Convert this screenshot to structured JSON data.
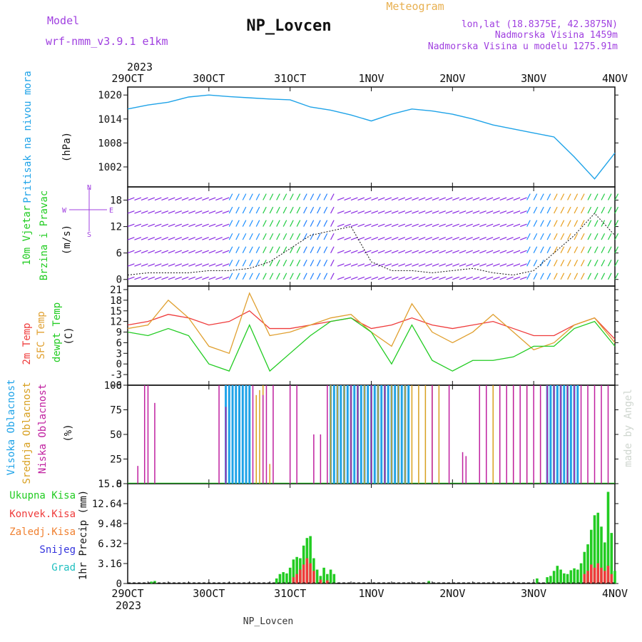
{
  "header": {
    "model_label": "Model",
    "model_name": "wrf-nmm_v3.9.1 e1km",
    "station": "NP_Lovcen",
    "meteogram_label": "Meteogram",
    "lonlat": "lon,lat (18.8375E, 42.3875N)",
    "elevation": "Nadmorska Visina 1459m",
    "model_elevation": "Nadmorska Visina u modelu 1275.91m",
    "year": "2023",
    "footer_station": "NP_Lovcen",
    "watermark": "made by Angel"
  },
  "colors": {
    "pressure": "#1fa3e8",
    "temp2m": "#ef3b3b",
    "sfc": "#e0a030",
    "dewpt": "#22cc22",
    "wind_speed": "#111111",
    "high_cloud": "#1fa3e8",
    "mid_cloud": "#d8a020",
    "low_cloud": "#c020a0",
    "total_precip": "#22cc22",
    "conv_precip": "#ef3b3b",
    "frz_precip": "#f08030",
    "snow": "#3333dd",
    "graupel": "#20c0c0",
    "header_purple": "#a040e0",
    "header_gold": "#e8b050"
  },
  "chart_data": [
    {
      "type": "line",
      "panel": "pressure",
      "ylabel_lines": [
        "Pritisak na nivou mora",
        "(hPa)"
      ],
      "x_ticks": [
        "29OCT",
        "30OCT",
        "31OCT",
        "1NOV",
        "2NOV",
        "3NOV",
        "4NOV"
      ],
      "ylim": [
        997,
        1022
      ],
      "yticks": [
        1002,
        1008,
        1014,
        1020
      ],
      "x_hours": [
        0,
        6,
        12,
        18,
        24,
        30,
        36,
        42,
        48,
        54,
        60,
        66,
        72,
        78,
        84,
        90,
        96,
        102,
        108,
        114,
        120,
        126,
        132,
        138,
        144
      ],
      "series": [
        {
          "values": [
            1016.5,
            1017.5,
            1018.2,
            1019.5,
            1020.0,
            1019.6,
            1019.3,
            1019.0,
            1018.8,
            1017.0,
            1016.2,
            1015.0,
            1013.5,
            1015.2,
            1016.5,
            1016.0,
            1015.2,
            1014.0,
            1012.5,
            1011.5,
            1010.5,
            1009.5,
            1004.5,
            999.0,
            1005.5
          ]
        }
      ]
    },
    {
      "type": "line",
      "panel": "wind",
      "ylabel_lines": [
        "10m Vjetar",
        "Brzina i Pravac",
        "(m/s)"
      ],
      "ylim": [
        -1.5,
        21
      ],
      "yticks": [
        0,
        6,
        12,
        18
      ],
      "x_hours": [
        0,
        6,
        12,
        18,
        24,
        30,
        36,
        42,
        48,
        54,
        60,
        66,
        72,
        78,
        84,
        90,
        96,
        102,
        108,
        114,
        120,
        126,
        132,
        138,
        144
      ],
      "series": [
        {
          "values": [
            1,
            1.5,
            1.5,
            1.5,
            2,
            2,
            2.5,
            4,
            7,
            10,
            11,
            12,
            4,
            2,
            2,
            1.5,
            2,
            2.5,
            1.5,
            1,
            2,
            6,
            10,
            15,
            10
          ]
        }
      ],
      "compass": [
        "N",
        "E",
        "W",
        "S"
      ]
    },
    {
      "type": "line",
      "panel": "temperature",
      "ylabel_lines": [
        "2m Temp",
        "SFC Temp",
        "dewpt Temp",
        "(C)"
      ],
      "ylim": [
        -6,
        22
      ],
      "yticks": [
        -6,
        -3,
        0,
        3,
        6,
        9,
        12,
        15,
        18,
        21
      ],
      "x_hours": [
        0,
        6,
        12,
        18,
        24,
        30,
        36,
        42,
        48,
        54,
        60,
        66,
        72,
        78,
        84,
        90,
        96,
        102,
        108,
        114,
        120,
        126,
        132,
        138,
        144
      ],
      "series": [
        {
          "name": "2m Temp",
          "values": [
            11,
            12,
            14,
            13,
            11,
            12,
            15,
            10,
            10,
            11,
            12,
            13,
            10,
            11,
            13,
            11,
            10,
            11,
            12,
            10,
            8,
            8,
            11,
            13,
            7
          ]
        },
        {
          "name": "SFC Temp",
          "values": [
            10,
            11,
            18,
            13,
            5,
            3,
            20,
            8,
            9,
            11,
            13,
            14,
            9,
            5,
            17,
            9,
            6,
            9,
            14,
            9,
            4,
            6,
            11,
            13,
            6
          ]
        },
        {
          "name": "dewpt Temp",
          "values": [
            9,
            8,
            10,
            8,
            0,
            -2,
            11,
            -2,
            3,
            8,
            12,
            13,
            9,
            0,
            11,
            1,
            -2,
            1,
            1,
            2,
            5,
            5,
            10,
            12,
            5
          ]
        }
      ]
    },
    {
      "type": "bar",
      "panel": "cloud",
      "ylabel_lines": [
        "Visoka Oblacnost",
        "Srednja Oblacnost",
        "Niska Oblacnost",
        "(%)"
      ],
      "ylim": [
        0,
        100
      ],
      "yticks": [
        0,
        25,
        50,
        75,
        100
      ],
      "series": [
        {
          "name": "Visoka Oblacnost",
          "bars": [
            [
              29,
              100
            ],
            [
              30,
              100
            ],
            [
              31,
              100
            ],
            [
              32,
              100
            ],
            [
              33,
              100
            ],
            [
              34,
              100
            ],
            [
              35,
              100
            ],
            [
              36,
              100
            ],
            [
              60,
              100
            ],
            [
              61,
              100
            ],
            [
              62,
              100
            ],
            [
              63,
              100
            ],
            [
              64,
              100
            ],
            [
              65,
              100
            ],
            [
              66,
              100
            ],
            [
              67,
              100
            ],
            [
              68,
              100
            ],
            [
              69,
              100
            ],
            [
              70,
              100
            ],
            [
              71,
              100
            ],
            [
              72,
              100
            ],
            [
              73,
              100
            ],
            [
              74,
              100
            ],
            [
              75,
              100
            ],
            [
              76,
              100
            ],
            [
              77,
              100
            ],
            [
              78,
              100
            ],
            [
              79,
              100
            ],
            [
              80,
              100
            ],
            [
              81,
              100
            ],
            [
              82,
              100
            ],
            [
              83,
              100
            ],
            [
              124,
              100
            ],
            [
              125,
              100
            ],
            [
              126,
              100
            ],
            [
              127,
              100
            ],
            [
              128,
              100
            ],
            [
              129,
              100
            ],
            [
              130,
              100
            ],
            [
              131,
              100
            ],
            [
              132,
              100
            ],
            [
              133,
              100
            ]
          ]
        },
        {
          "name": "Srednja Oblacnost",
          "bars": [
            [
              38,
              90
            ],
            [
              39,
              95
            ],
            [
              40,
              100
            ],
            [
              42,
              20
            ],
            [
              60,
              100
            ],
            [
              62,
              100
            ],
            [
              64,
              100
            ],
            [
              66,
              100
            ],
            [
              68,
              100
            ],
            [
              70,
              100
            ],
            [
              72,
              100
            ],
            [
              74,
              100
            ],
            [
              76,
              100
            ],
            [
              78,
              100
            ],
            [
              80,
              100
            ],
            [
              82,
              100
            ],
            [
              84,
              100
            ],
            [
              86,
              100
            ],
            [
              88,
              100
            ],
            [
              90,
              100
            ],
            [
              92,
              100
            ],
            [
              108,
              100
            ],
            [
              110,
              100
            ],
            [
              114,
              100
            ],
            [
              118,
              100
            ],
            [
              122,
              85
            ],
            [
              126,
              100
            ],
            [
              130,
              100
            ]
          ]
        },
        {
          "name": "Niska Oblacnost",
          "bars": [
            [
              3,
              18
            ],
            [
              5,
              100
            ],
            [
              6,
              100
            ],
            [
              8,
              82
            ],
            [
              27,
              100
            ],
            [
              29,
              78
            ],
            [
              37,
              100
            ],
            [
              40,
              90
            ],
            [
              41,
              100
            ],
            [
              43,
              100
            ],
            [
              48,
              100
            ],
            [
              50,
              100
            ],
            [
              55,
              50
            ],
            [
              57,
              50
            ],
            [
              59,
              100
            ],
            [
              66,
              100
            ],
            [
              68,
              100
            ],
            [
              72,
              100
            ],
            [
              76,
              100
            ],
            [
              90,
              100
            ],
            [
              95,
              100
            ],
            [
              99,
              32
            ],
            [
              100,
              28
            ],
            [
              104,
              100
            ],
            [
              106,
              100
            ],
            [
              110,
              100
            ],
            [
              112,
              100
            ],
            [
              114,
              100
            ],
            [
              116,
              100
            ],
            [
              118,
              100
            ],
            [
              120,
              100
            ],
            [
              122,
              100
            ],
            [
              124,
              100
            ],
            [
              126,
              100
            ],
            [
              128,
              100
            ],
            [
              130,
              100
            ],
            [
              132,
              100
            ],
            [
              134,
              100
            ],
            [
              136,
              100
            ],
            [
              138,
              100
            ],
            [
              140,
              100
            ],
            [
              142,
              100
            ]
          ]
        }
      ]
    },
    {
      "type": "bar",
      "panel": "precip",
      "ylabel_lines": [
        "1hr Precip (mm)"
      ],
      "legend": [
        "Ukupna Kisa",
        "Konvek.Kisa",
        "Zaledj.Kisa",
        "Snijeg",
        "Grad"
      ],
      "ylim": [
        0,
        15.8
      ],
      "yticks": [
        0,
        3.16,
        6.32,
        9.48,
        12.64,
        15.8
      ],
      "x_ticks": [
        "29OCT",
        "30OCT",
        "31OCT",
        "1NOV",
        "2NOV",
        "3NOV",
        "4NOV"
      ],
      "series": [
        {
          "name": "Ukupna Kisa",
          "bars": [
            [
              7,
              0.3
            ],
            [
              8,
              0.4
            ],
            [
              44,
              0.8
            ],
            [
              45,
              1.5
            ],
            [
              46,
              1.8
            ],
            [
              47,
              1.6
            ],
            [
              48,
              2.5
            ],
            [
              49,
              3.8
            ],
            [
              50,
              4.2
            ],
            [
              51,
              4.0
            ],
            [
              52,
              6.0
            ],
            [
              53,
              7.2
            ],
            [
              54,
              7.5
            ],
            [
              55,
              4.0
            ],
            [
              56,
              2.2
            ],
            [
              57,
              1.2
            ],
            [
              58,
              2.5
            ],
            [
              59,
              1.5
            ],
            [
              60,
              2.2
            ],
            [
              61,
              1.5
            ],
            [
              89,
              0.4
            ],
            [
              121,
              0.8
            ],
            [
              124,
              1.0
            ],
            [
              125,
              1.2
            ],
            [
              126,
              2.0
            ],
            [
              127,
              2.8
            ],
            [
              128,
              2.2
            ],
            [
              129,
              1.6
            ],
            [
              130,
              1.5
            ],
            [
              131,
              2.1
            ],
            [
              132,
              2.4
            ],
            [
              133,
              2.2
            ],
            [
              134,
              3.2
            ],
            [
              135,
              5.0
            ],
            [
              136,
              6.2
            ],
            [
              137,
              8.5
            ],
            [
              138,
              10.8
            ],
            [
              139,
              11.2
            ],
            [
              140,
              9.0
            ],
            [
              141,
              6.5
            ],
            [
              142,
              14.5
            ],
            [
              143,
              8.0
            ],
            [
              144,
              2.0
            ]
          ]
        },
        {
          "name": "Konvek.Kisa",
          "bars": [
            [
              49,
              1.0
            ],
            [
              50,
              1.5
            ],
            [
              51,
              2.2
            ],
            [
              52,
              3.0
            ],
            [
              53,
              4.0
            ],
            [
              54,
              3.2
            ],
            [
              55,
              2.0
            ],
            [
              57,
              0.6
            ],
            [
              59,
              0.5
            ],
            [
              135,
              1.5
            ],
            [
              136,
              2.0
            ],
            [
              137,
              3.0
            ],
            [
              138,
              2.5
            ],
            [
              139,
              3.2
            ],
            [
              140,
              2.5
            ],
            [
              141,
              2.0
            ],
            [
              142,
              2.8
            ],
            [
              143,
              1.5
            ]
          ]
        }
      ]
    }
  ]
}
